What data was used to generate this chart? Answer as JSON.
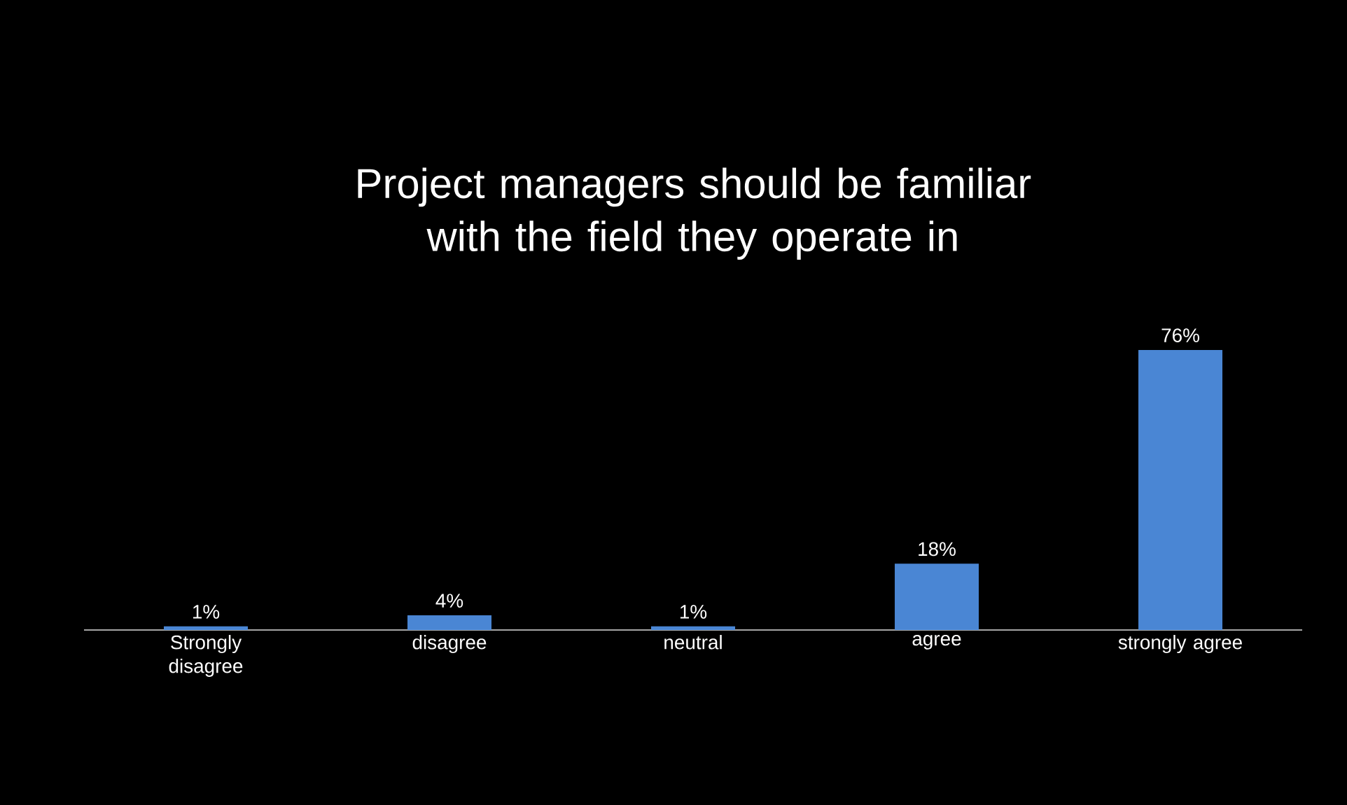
{
  "chart_data": {
    "type": "bar",
    "title": "Project managers should be familiar with the field they operate in",
    "categories": [
      "Strongly disagree",
      "disagree",
      "neutral",
      "agree",
      "strongly agree"
    ],
    "values": [
      1,
      4,
      1,
      18,
      76
    ],
    "value_labels": [
      "1%",
      "4%",
      "1%",
      "18%",
      "76%"
    ],
    "color": "#4a86d4"
  }
}
